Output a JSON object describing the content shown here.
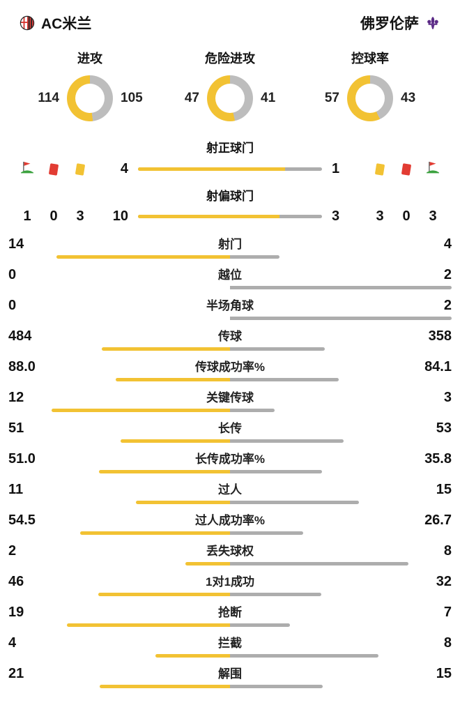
{
  "colors": {
    "home": "#F2C233",
    "away": "#ADADAD",
    "donut_away": "#BDBDBD",
    "red_card": "#E23C33",
    "yellow_card": "#F2C233",
    "flag_green": "#3BA23F",
    "fiorentina_purple": "#5B2A86",
    "milan_red": "#D6322E",
    "milan_black": "#1B1B1B"
  },
  "header": {
    "home": {
      "name": "AC米兰",
      "logo": "ac-milan-crest"
    },
    "away": {
      "name": "佛罗伦萨",
      "logo": "fiorentina-fleur-de-lis"
    }
  },
  "donuts": [
    {
      "label": "进攻",
      "home": 114,
      "away": 105
    },
    {
      "label": "危险进攻",
      "home": 47,
      "away": 41
    },
    {
      "label": "控球率",
      "home": 57,
      "away": 43
    }
  ],
  "discipline": {
    "home": {
      "corner_kicks": 1,
      "red_cards": 0,
      "yellow_cards": 3
    },
    "away": {
      "corner_kicks": 3,
      "red_cards": 0,
      "yellow_cards": 3
    }
  },
  "shot_bars": [
    {
      "label": "射正球门",
      "home": 4,
      "away": 1
    },
    {
      "label": "射偏球门",
      "home": 10,
      "away": 3
    }
  ],
  "stats": [
    {
      "label": "射门",
      "home": 14,
      "away": 4
    },
    {
      "label": "越位",
      "home": 0,
      "away": 2
    },
    {
      "label": "半场角球",
      "home": 0,
      "away": 2
    },
    {
      "label": "传球",
      "home": 484,
      "away": 358
    },
    {
      "label": "传球成功率%",
      "home": "88.0",
      "away": "84.1"
    },
    {
      "label": "关键传球",
      "home": 12,
      "away": 3
    },
    {
      "label": "长传",
      "home": 51,
      "away": 53
    },
    {
      "label": "长传成功率%",
      "home": "51.0",
      "away": "35.8"
    },
    {
      "label": "过人",
      "home": 11,
      "away": 15
    },
    {
      "label": "过人成功率%",
      "home": "54.5",
      "away": "26.7"
    },
    {
      "label": "丢失球权",
      "home": 2,
      "away": 8
    },
    {
      "label": "1对1成功",
      "home": 46,
      "away": 32
    },
    {
      "label": "抢断",
      "home": 19,
      "away": 7
    },
    {
      "label": "拦截",
      "home": 4,
      "away": 8
    },
    {
      "label": "解围",
      "home": 21,
      "away": 15
    }
  ],
  "chart_data": [
    {
      "type": "pie",
      "title": "进攻",
      "categories": [
        "AC米兰",
        "佛罗伦萨"
      ],
      "values": [
        114,
        105
      ],
      "legend_position": "sides"
    },
    {
      "type": "pie",
      "title": "危险进攻",
      "categories": [
        "AC米兰",
        "佛罗伦萨"
      ],
      "values": [
        47,
        41
      ],
      "legend_position": "sides"
    },
    {
      "type": "pie",
      "title": "控球率",
      "categories": [
        "AC米兰",
        "佛罗伦萨"
      ],
      "values": [
        57,
        43
      ],
      "legend_position": "sides"
    },
    {
      "type": "bar",
      "title": "AC米兰 vs 佛罗伦萨 技术统计",
      "categories": [
        "射正球门",
        "射偏球门",
        "角球",
        "红牌",
        "黄牌",
        "射门",
        "越位",
        "半场角球",
        "传球",
        "传球成功率%",
        "关键传球",
        "长传",
        "长传成功率%",
        "过人",
        "过人成功率%",
        "丢失球权",
        "1对1成功",
        "抢断",
        "拦截",
        "解围"
      ],
      "series": [
        {
          "name": "AC米兰",
          "values": [
            4,
            10,
            1,
            0,
            3,
            14,
            0,
            0,
            484,
            88.0,
            12,
            51,
            51.0,
            11,
            54.5,
            2,
            46,
            19,
            4,
            21
          ]
        },
        {
          "name": "佛罗伦萨",
          "values": [
            1,
            3,
            3,
            0,
            3,
            4,
            2,
            2,
            358,
            84.1,
            3,
            53,
            35.8,
            15,
            26.7,
            8,
            32,
            7,
            8,
            15
          ]
        }
      ]
    }
  ]
}
